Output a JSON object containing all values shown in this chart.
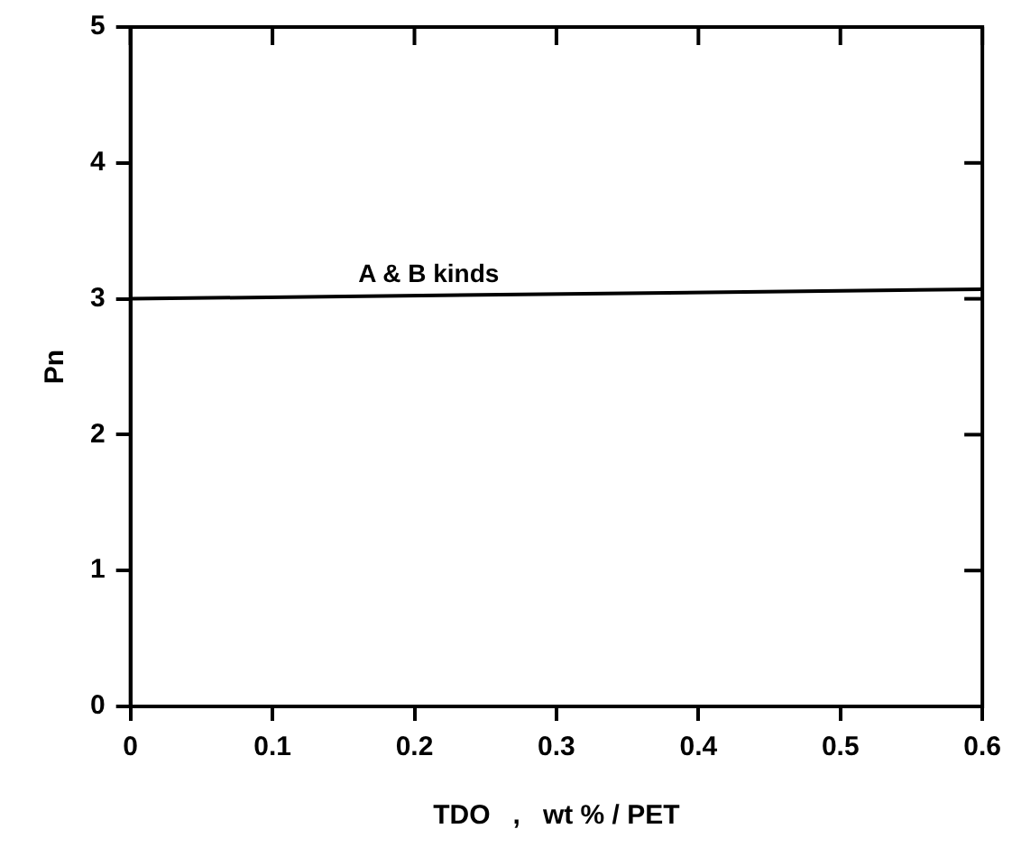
{
  "chart_data": {
    "type": "line",
    "xlabel": "TDO   ,   wt % / PET",
    "ylabel": "Pn",
    "x": [
      0,
      0.6
    ],
    "series": [
      {
        "color": "#000000",
        "values": [
          3.0,
          3.07
        ]
      }
    ],
    "xlim": [
      0,
      0.6
    ],
    "xticks": [
      0,
      0.1,
      0.2,
      0.3,
      0.4,
      0.5,
      0.6
    ],
    "ylim": [
      0,
      5
    ],
    "yticks": [
      0,
      1,
      2,
      3,
      4,
      5
    ],
    "grid": false,
    "legend": false,
    "marker": "none",
    "line_style": "solid",
    "annotations": [
      {
        "text": "A & B kinds",
        "x": 0.21,
        "y": 3.03
      }
    ]
  }
}
